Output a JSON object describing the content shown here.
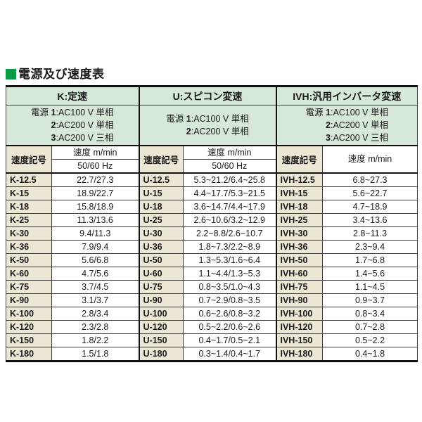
{
  "title": {
    "text": "電源及び速度表"
  },
  "colors": {
    "title_square_green": "#0a9b47",
    "header_green": "#d6e9d9",
    "code_beige": "#ece7d5",
    "border_dark": "#111111",
    "text": "#1a1a1a"
  },
  "table": {
    "sections": [
      {
        "header": "K:定速",
        "power_label": "電源",
        "power_lines": [
          [
            "1",
            ":AC100 V 単相"
          ],
          [
            "2",
            ":AC200 V 単相"
          ],
          [
            "3",
            ":AC200 V 三相"
          ]
        ],
        "code_header": "速度記号",
        "speed_header": "速度 m/min",
        "freq_header": "50/60 Hz"
      },
      {
        "header": "U:スピコン変速",
        "power_label": "電源",
        "power_lines": [
          [
            "1",
            ":AC100 V 単相"
          ],
          [
            "2",
            ":AC200 V 単相"
          ]
        ],
        "code_header": "速度記号",
        "speed_header": "速度 m/min",
        "freq_header": "50/60 Hz"
      },
      {
        "header": "IVH:汎用インバータ変速",
        "power_label": "電源",
        "power_lines": [
          [
            "1",
            ":AC100 V 単相"
          ],
          [
            "2",
            ":AC200 V 単相"
          ],
          [
            "3",
            ":AC200 V 三相"
          ]
        ],
        "code_header": "速度記号",
        "speed_header": "速度 m/min",
        "freq_header": ""
      }
    ],
    "rows": [
      [
        "K-12.5",
        "22.7/27.3",
        "U-12.5",
        "5.3~21.2/6.4~25.8",
        "IVH-12.5",
        "6.8~27.3"
      ],
      [
        "K-15",
        "18.9/22.7",
        "U-15",
        "4.4~17.7/5.3~21.5",
        "IVH-15",
        "5.6~22.7"
      ],
      [
        "K-18",
        "15.8/18.9",
        "U-18",
        "3.6~14.7/4.4~17.9",
        "IVH-18",
        "4.7~18.9"
      ],
      [
        "K-25",
        "11.3/13.6",
        "U-25",
        "2.6~10.6/3.2~12.9",
        "IVH-25",
        "3.4~13.6"
      ],
      [
        "K-30",
        "9.4/11.3",
        "U-30",
        "2.2~8.8/2.6~10.7",
        "IVH-30",
        "2.8~11.3"
      ],
      [
        "K-36",
        "7.9/9.4",
        "U-36",
        "1.8~7.3/2.2~8.9",
        "IVH-36",
        "2.3~9.4"
      ],
      [
        "K-50",
        "5.6/6.8",
        "U-50",
        "1.3~5.3/1.6~6.4",
        "IVH-50",
        "1.7~6.8"
      ],
      [
        "K-60",
        "4.7/5.6",
        "U-60",
        "1.1~4.4/1.3~5.3",
        "IVH-60",
        "1.4~5.6"
      ],
      [
        "K-75",
        "3.7/4.5",
        "U-75",
        "0.8~3.5/1.0~4.3",
        "IVH-75",
        "1.1~4.5"
      ],
      [
        "K-90",
        "3.1/3.7",
        "U-90",
        "0.7~2.9/0.8~3.5",
        "IVH-90",
        "0.9~3.7"
      ],
      [
        "K-100",
        "2.8/3.4",
        "U-100",
        "0.6~2.6/0.8~3.2",
        "IVH-100",
        "0.8~3.4"
      ],
      [
        "K-120",
        "2.3/2.8",
        "U-120",
        "0.5~2.2/0.6~2.6",
        "IVH-120",
        "0.7~2.8"
      ],
      [
        "K-150",
        "1.8/2.2",
        "U-150",
        "0.4~1.7/0.5~2.1",
        "IVH-150",
        "0.5~2.2"
      ],
      [
        "K-180",
        "1.5/1.8",
        "U-180",
        "0.3~1.4/0.4~1.7",
        "IVH-180",
        "0.4~1.8"
      ]
    ]
  }
}
